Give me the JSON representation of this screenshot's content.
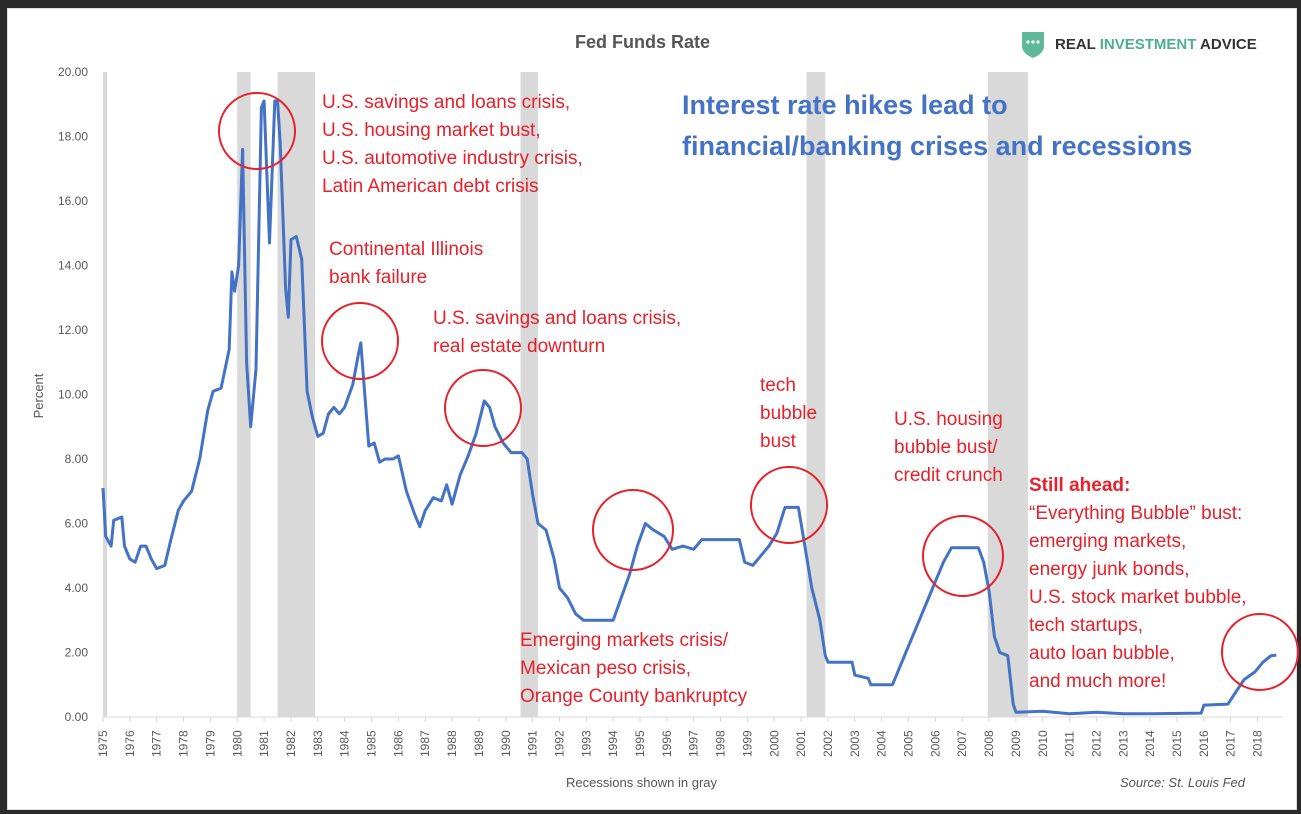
{
  "chart_data": {
    "type": "line",
    "title": "Fed Funds Rate",
    "xlabel": "Recessions shown in gray",
    "ylabel": "Percent",
    "ylim": [
      0,
      20
    ],
    "xlim": [
      1975,
      2018.9
    ],
    "yticks": [
      "0.00",
      "2.00",
      "4.00",
      "6.00",
      "8.00",
      "10.00",
      "12.00",
      "14.00",
      "16.00",
      "18.00",
      "20.00"
    ],
    "xticks": [
      "1975",
      "1976",
      "1977",
      "1978",
      "1979",
      "1980",
      "1981",
      "1982",
      "1983",
      "1984",
      "1985",
      "1986",
      "1987",
      "1988",
      "1989",
      "1990",
      "1991",
      "1992",
      "1993",
      "1994",
      "1995",
      "1996",
      "1997",
      "1998",
      "1999",
      "2000",
      "2001",
      "2002",
      "2003",
      "2004",
      "2005",
      "2006",
      "2007",
      "2008",
      "2009",
      "2010",
      "2011",
      "2012",
      "2013",
      "2014",
      "2015",
      "2016",
      "2017",
      "2018"
    ],
    "grid": false,
    "recessions": [
      [
        1975.0,
        1975.15
      ],
      [
        1980.0,
        1980.5
      ],
      [
        1981.5,
        1982.9
      ],
      [
        1990.55,
        1991.2
      ],
      [
        2001.2,
        2001.9
      ],
      [
        2007.95,
        2009.45
      ]
    ],
    "series": [
      {
        "name": "Fed Funds Rate",
        "color": "#4472c4",
        "points": [
          [
            1975.0,
            7.1
          ],
          [
            1975.1,
            5.6
          ],
          [
            1975.3,
            5.3
          ],
          [
            1975.4,
            6.1
          ],
          [
            1975.7,
            6.2
          ],
          [
            1975.8,
            5.3
          ],
          [
            1976.0,
            4.9
          ],
          [
            1976.2,
            4.8
          ],
          [
            1976.4,
            5.3
          ],
          [
            1976.6,
            5.3
          ],
          [
            1976.8,
            4.9
          ],
          [
            1977.0,
            4.6
          ],
          [
            1977.3,
            4.7
          ],
          [
            1977.5,
            5.4
          ],
          [
            1977.8,
            6.4
          ],
          [
            1978.0,
            6.7
          ],
          [
            1978.3,
            7.0
          ],
          [
            1978.6,
            8.0
          ],
          [
            1978.9,
            9.5
          ],
          [
            1979.1,
            10.1
          ],
          [
            1979.4,
            10.2
          ],
          [
            1979.7,
            11.4
          ],
          [
            1979.8,
            13.8
          ],
          [
            1979.9,
            13.2
          ],
          [
            1980.05,
            14.0
          ],
          [
            1980.2,
            17.6
          ],
          [
            1980.35,
            11.0
          ],
          [
            1980.5,
            9.0
          ],
          [
            1980.7,
            10.8
          ],
          [
            1980.9,
            18.9
          ],
          [
            1981.0,
            19.1
          ],
          [
            1981.2,
            14.7
          ],
          [
            1981.4,
            19.1
          ],
          [
            1981.5,
            19.1
          ],
          [
            1981.6,
            17.8
          ],
          [
            1981.8,
            13.3
          ],
          [
            1981.9,
            12.4
          ],
          [
            1982.0,
            14.8
          ],
          [
            1982.2,
            14.9
          ],
          [
            1982.4,
            14.2
          ],
          [
            1982.6,
            10.1
          ],
          [
            1982.8,
            9.3
          ],
          [
            1983.0,
            8.7
          ],
          [
            1983.2,
            8.8
          ],
          [
            1983.4,
            9.4
          ],
          [
            1983.6,
            9.6
          ],
          [
            1983.8,
            9.4
          ],
          [
            1984.0,
            9.6
          ],
          [
            1984.3,
            10.3
          ],
          [
            1984.5,
            11.2
          ],
          [
            1984.6,
            11.6
          ],
          [
            1984.75,
            10.0
          ],
          [
            1984.9,
            8.4
          ],
          [
            1985.1,
            8.5
          ],
          [
            1985.3,
            7.9
          ],
          [
            1985.5,
            8.0
          ],
          [
            1985.8,
            8.0
          ],
          [
            1986.0,
            8.1
          ],
          [
            1986.3,
            7.0
          ],
          [
            1986.6,
            6.3
          ],
          [
            1986.8,
            5.9
          ],
          [
            1987.0,
            6.4
          ],
          [
            1987.3,
            6.8
          ],
          [
            1987.6,
            6.7
          ],
          [
            1987.8,
            7.2
          ],
          [
            1988.0,
            6.6
          ],
          [
            1988.3,
            7.5
          ],
          [
            1988.6,
            8.1
          ],
          [
            1988.9,
            8.8
          ],
          [
            1989.2,
            9.8
          ],
          [
            1989.4,
            9.6
          ],
          [
            1989.6,
            9.0
          ],
          [
            1989.9,
            8.5
          ],
          [
            1990.2,
            8.2
          ],
          [
            1990.6,
            8.2
          ],
          [
            1990.8,
            8.0
          ],
          [
            1991.0,
            6.9
          ],
          [
            1991.2,
            6.0
          ],
          [
            1991.5,
            5.8
          ],
          [
            1991.8,
            4.9
          ],
          [
            1992.0,
            4.0
          ],
          [
            1992.3,
            3.7
          ],
          [
            1992.6,
            3.2
          ],
          [
            1992.9,
            3.0
          ],
          [
            1993.5,
            3.0
          ],
          [
            1994.0,
            3.0
          ],
          [
            1994.3,
            3.7
          ],
          [
            1994.6,
            4.4
          ],
          [
            1994.9,
            5.3
          ],
          [
            1995.2,
            6.0
          ],
          [
            1995.5,
            5.8
          ],
          [
            1995.9,
            5.6
          ],
          [
            1996.2,
            5.2
          ],
          [
            1996.6,
            5.3
          ],
          [
            1997.0,
            5.2
          ],
          [
            1997.3,
            5.5
          ],
          [
            1998.0,
            5.5
          ],
          [
            1998.7,
            5.5
          ],
          [
            1998.9,
            4.8
          ],
          [
            1999.2,
            4.7
          ],
          [
            1999.5,
            5.0
          ],
          [
            1999.8,
            5.3
          ],
          [
            2000.1,
            5.7
          ],
          [
            2000.4,
            6.5
          ],
          [
            2000.9,
            6.5
          ],
          [
            2001.1,
            5.5
          ],
          [
            2001.4,
            4.0
          ],
          [
            2001.7,
            3.0
          ],
          [
            2001.9,
            1.9
          ],
          [
            2002.0,
            1.7
          ],
          [
            2002.9,
            1.7
          ],
          [
            2003.0,
            1.3
          ],
          [
            2003.5,
            1.2
          ],
          [
            2003.6,
            1.0
          ],
          [
            2004.4,
            1.0
          ],
          [
            2004.6,
            1.4
          ],
          [
            2004.9,
            2.0
          ],
          [
            2005.3,
            2.8
          ],
          [
            2005.8,
            3.8
          ],
          [
            2006.3,
            4.8
          ],
          [
            2006.6,
            5.25
          ],
          [
            2007.6,
            5.25
          ],
          [
            2007.8,
            4.8
          ],
          [
            2008.0,
            3.9
          ],
          [
            2008.2,
            2.5
          ],
          [
            2008.4,
            2.0
          ],
          [
            2008.7,
            1.9
          ],
          [
            2008.9,
            0.4
          ],
          [
            2009.0,
            0.15
          ],
          [
            2010.0,
            0.18
          ],
          [
            2011.0,
            0.1
          ],
          [
            2012.0,
            0.15
          ],
          [
            2013.0,
            0.1
          ],
          [
            2014.0,
            0.1
          ],
          [
            2015.9,
            0.12
          ],
          [
            2016.0,
            0.37
          ],
          [
            2016.9,
            0.4
          ],
          [
            2017.1,
            0.66
          ],
          [
            2017.5,
            1.16
          ],
          [
            2017.9,
            1.4
          ],
          [
            2018.2,
            1.7
          ],
          [
            2018.5,
            1.9
          ],
          [
            2018.7,
            1.92
          ]
        ]
      }
    ],
    "annotations": {
      "headline": [
        "Interest rate hikes lead to",
        "financial/banking crises and recessions"
      ],
      "a1980": [
        "U.S. savings and loans crisis,",
        "U.S. housing market bust,",
        "U.S. automotive industry crisis,",
        "Latin American debt crisis"
      ],
      "a1984": [
        "Continental Illinois",
        "bank failure"
      ],
      "a1989": [
        "U.S. savings and loans crisis,",
        "real estate downturn"
      ],
      "a1995": [
        "Emerging markets crisis/",
        "Mexican peso crisis,",
        "Orange County bankruptcy"
      ],
      "a2000": [
        "tech",
        "bubble",
        "bust"
      ],
      "a2007": [
        "U.S. housing",
        "bubble bust/",
        "credit crunch"
      ],
      "ahead_title": "Still ahead:",
      "ahead": [
        "“Everything Bubble” bust:",
        "emerging markets,",
        "energy junk bonds,",
        "U.S. stock market bubble,",
        "tech startups,",
        "auto loan bubble,",
        "and much more!"
      ]
    },
    "source": "Source: St. Louis Fed"
  },
  "logo": {
    "part1": "REAL ",
    "part2": "INVESTMENT",
    "part3": " ADVICE"
  },
  "colors": {
    "line": "#4472c4",
    "annotation": "#e8202a",
    "recession": "#d9d9d9"
  }
}
